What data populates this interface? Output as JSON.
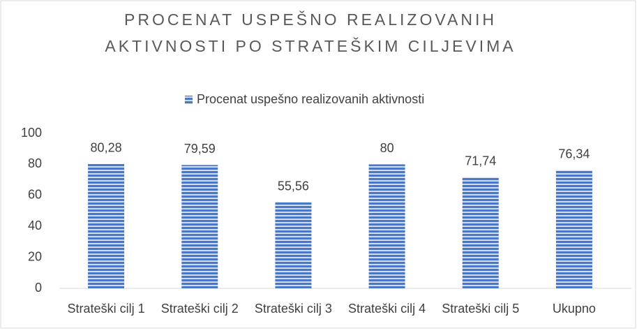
{
  "chart_data": {
    "type": "bar",
    "title": [
      "PROCENAT USPEŠNO REALIZOVANIH",
      "AKTIVNOSTI PO STRATEŠKIM CILJEVIMA"
    ],
    "categories": [
      "Strateški cilj 1",
      "Strateški cilj 2",
      "Strateški cilj 3",
      "Strateški cilj 4",
      "Strateški cilj 5",
      "Ukupno"
    ],
    "series": [
      {
        "name": "Procenat uspešno realizovanih aktivnosti",
        "color": "#3f6fc0",
        "values": [
          80.28,
          79.59,
          55.56,
          80,
          71.74,
          76.34
        ],
        "value_labels": [
          "80,28",
          "79,59",
          "55,56",
          "80",
          "71,74",
          "76,34"
        ]
      }
    ],
    "ylim": [
      0,
      100
    ],
    "yticks": [
      0,
      20,
      40,
      60,
      80,
      100
    ],
    "grid": false,
    "legend": "top"
  }
}
